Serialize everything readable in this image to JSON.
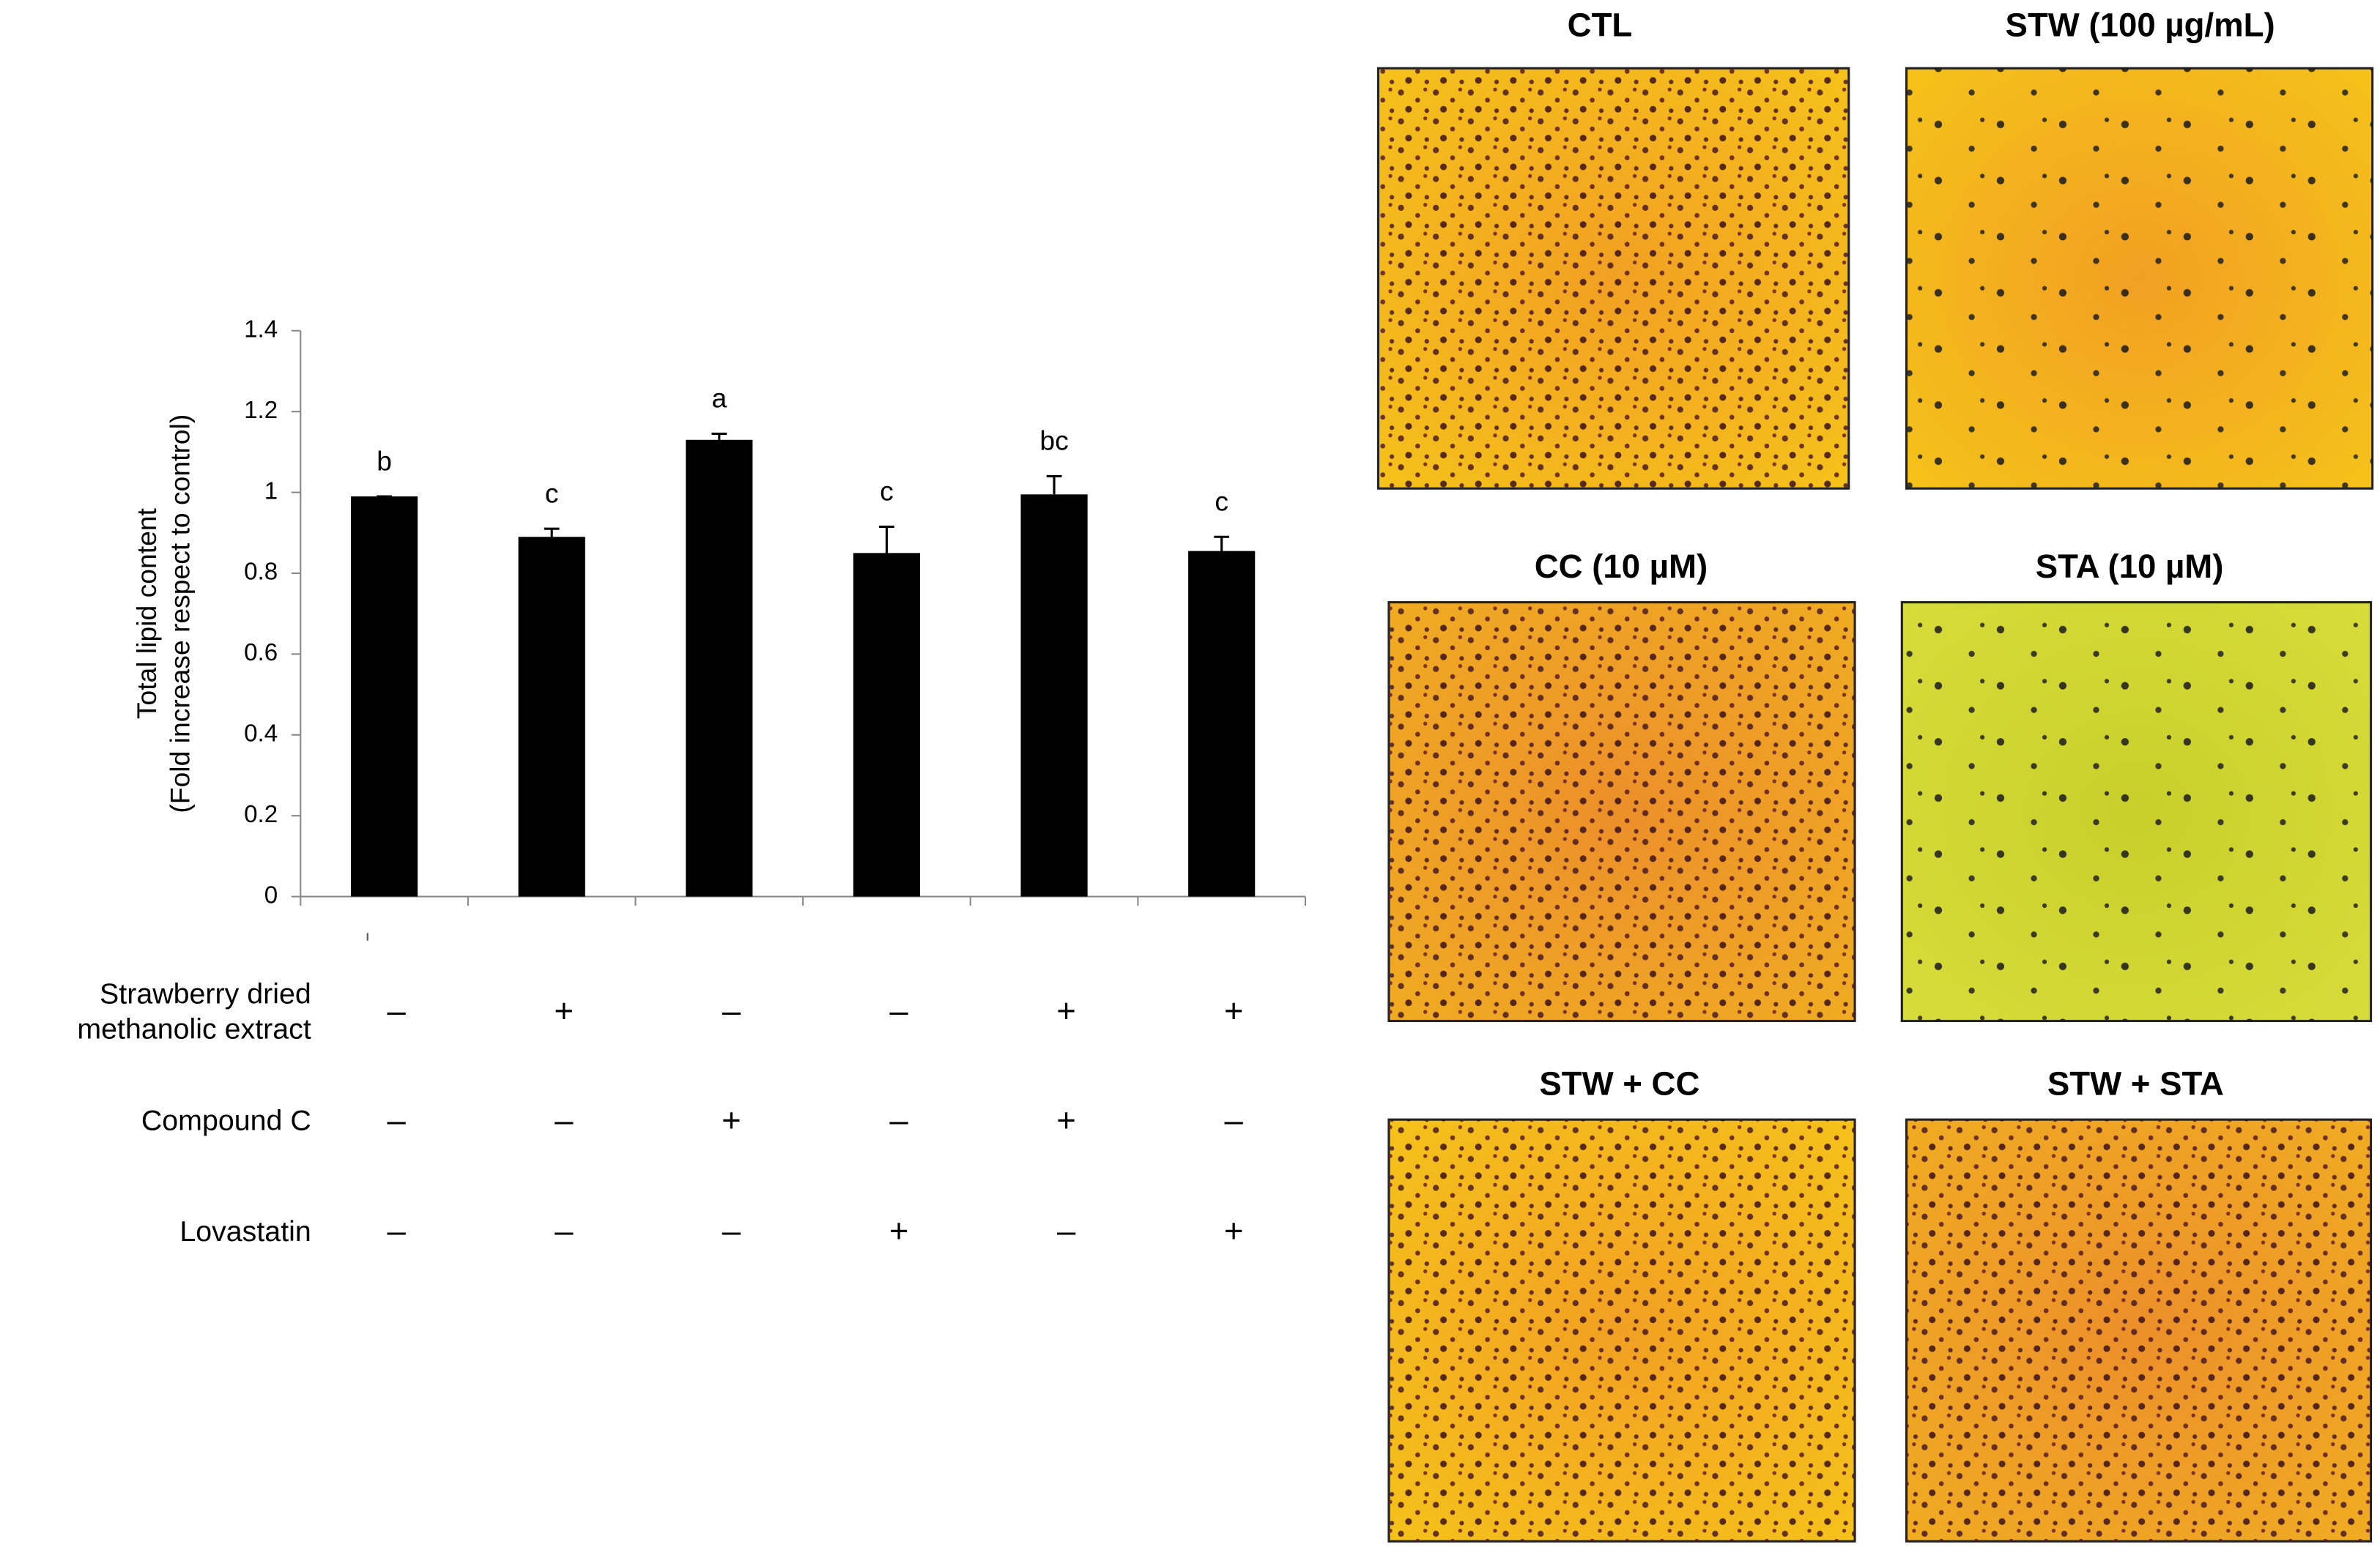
{
  "chart_data": {
    "type": "bar",
    "y_label": [
      "Total lipid content",
      "(Fold increase respect to control)"
    ],
    "categories": [
      null,
      null,
      null,
      null,
      null,
      null
    ],
    "values": [
      0.99,
      0.89,
      1.13,
      0.85,
      0.995,
      0.855
    ],
    "errors": [
      0,
      0.02,
      0.015,
      0.065,
      0.045,
      0.035
    ],
    "annotations": [
      "b",
      "c",
      "a",
      "c",
      "bc",
      "c"
    ],
    "color": "#000000",
    "ylim": [
      0,
      1.4
    ],
    "yticks": [
      0,
      0.2,
      0.4,
      0.6,
      0.8,
      1,
      1.2,
      1.4
    ],
    "grid": false
  },
  "treatments": [
    {
      "label": [
        "Strawberry dried",
        "methanolic extract"
      ],
      "signs": [
        "–",
        "+",
        "–",
        "–",
        "+",
        "+"
      ]
    },
    {
      "label": [
        "Compound C"
      ],
      "signs": [
        "–",
        "–",
        "+",
        "–",
        "+",
        "–"
      ]
    },
    {
      "label": [
        "Lovastatin"
      ],
      "signs": [
        "–",
        "–",
        "–",
        "+",
        "–",
        "+"
      ]
    }
  ],
  "panels": [
    {
      "title": "CTL"
    },
    {
      "title": "STW  (100 µg/mL)"
    },
    {
      "title": "CC (10 µM)"
    },
    {
      "title": "STA (10 µM)"
    },
    {
      "title": "STW + CC"
    },
    {
      "title": "STW + STA"
    }
  ]
}
